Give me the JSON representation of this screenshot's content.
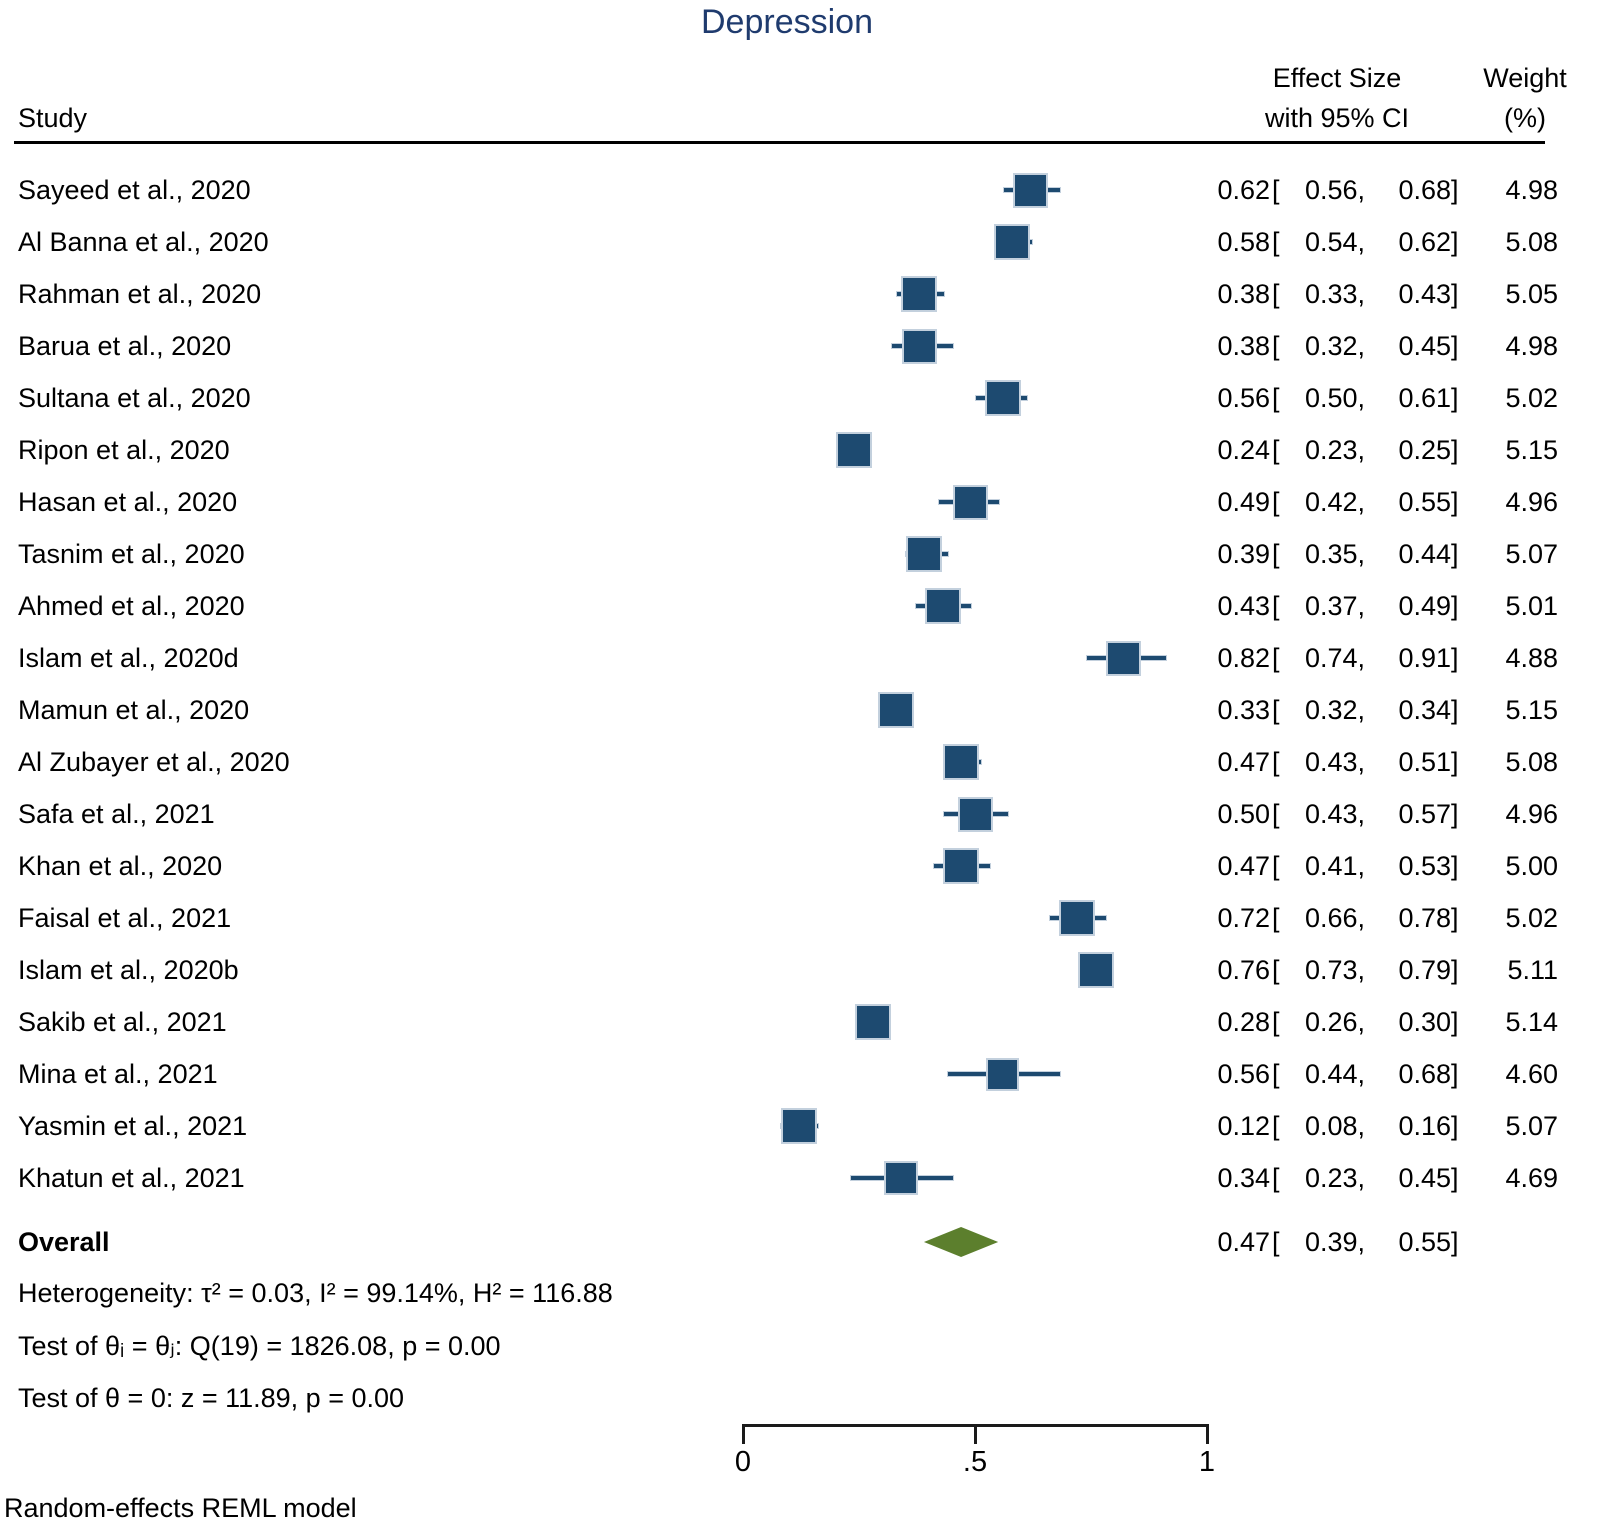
{
  "title": "Depression",
  "header": {
    "study": "Study",
    "effect_line1": "Effect Size",
    "effect_line2": "with 95% CI",
    "weight_line1": "Weight",
    "weight_line2": "(%)"
  },
  "stats": {
    "overall_label": "Overall",
    "heterogeneity": "Heterogeneity: τ² = 0.03, I² = 99.14%, H² = 116.88",
    "test_theta_ij": "Test of θᵢ = θⱼ: Q(19) = 1826.08, p = 0.00",
    "test_theta_zero": "Test of θ = 0: z = 11.89, p = 0.00"
  },
  "footer": "Random-effects REML model",
  "colors": {
    "marker_fill": "#1d4a70",
    "marker_border": "#c3d0dd",
    "diamond_fill": "#5c7f2d",
    "title_color": "#1f3b6e",
    "axis_color": "#1a1a1a"
  },
  "chart_data": {
    "type": "forest",
    "title": "Depression",
    "x_axis": {
      "range": [
        0,
        1
      ],
      "ticks": [
        {
          "label": "0",
          "value": 0
        },
        {
          "label": ".5",
          "value": 0.5
        },
        {
          "label": "1",
          "value": 1
        }
      ]
    },
    "columns": [
      "Study",
      "Effect Size with 95% CI",
      "Weight (%)"
    ],
    "studies": [
      {
        "label": "Sayeed et al., 2020",
        "est": 0.62,
        "lo": 0.56,
        "hi": 0.68,
        "weight": 4.98
      },
      {
        "label": "Al Banna et al., 2020",
        "est": 0.58,
        "lo": 0.54,
        "hi": 0.62,
        "weight": 5.08
      },
      {
        "label": "Rahman et al., 2020",
        "est": 0.38,
        "lo": 0.33,
        "hi": 0.43,
        "weight": 5.05
      },
      {
        "label": "Barua et al., 2020",
        "est": 0.38,
        "lo": 0.32,
        "hi": 0.45,
        "weight": 4.98
      },
      {
        "label": "Sultana et al., 2020",
        "est": 0.56,
        "lo": 0.5,
        "hi": 0.61,
        "weight": 5.02
      },
      {
        "label": "Ripon et al., 2020",
        "est": 0.24,
        "lo": 0.23,
        "hi": 0.25,
        "weight": 5.15
      },
      {
        "label": "Hasan et al., 2020",
        "est": 0.49,
        "lo": 0.42,
        "hi": 0.55,
        "weight": 4.96
      },
      {
        "label": "Tasnim et al., 2020",
        "est": 0.39,
        "lo": 0.35,
        "hi": 0.44,
        "weight": 5.07
      },
      {
        "label": "Ahmed et al., 2020",
        "est": 0.43,
        "lo": 0.37,
        "hi": 0.49,
        "weight": 5.01
      },
      {
        "label": "Islam et al., 2020d",
        "est": 0.82,
        "lo": 0.74,
        "hi": 0.91,
        "weight": 4.88
      },
      {
        "label": "Mamun et al., 2020",
        "est": 0.33,
        "lo": 0.32,
        "hi": 0.34,
        "weight": 5.15
      },
      {
        "label": "Al Zubayer et al., 2020",
        "est": 0.47,
        "lo": 0.43,
        "hi": 0.51,
        "weight": 5.08
      },
      {
        "label": "Safa et al., 2021",
        "est": 0.5,
        "lo": 0.43,
        "hi": 0.57,
        "weight": 4.96
      },
      {
        "label": "Khan et al., 2020",
        "est": 0.47,
        "lo": 0.41,
        "hi": 0.53,
        "weight": 5.0
      },
      {
        "label": "Faisal et al., 2021",
        "est": 0.72,
        "lo": 0.66,
        "hi": 0.78,
        "weight": 5.02
      },
      {
        "label": "Islam et al., 2020b",
        "est": 0.76,
        "lo": 0.73,
        "hi": 0.79,
        "weight": 5.11
      },
      {
        "label": "Sakib et al., 2021",
        "est": 0.28,
        "lo": 0.26,
        "hi": 0.3,
        "weight": 5.14
      },
      {
        "label": "Mina et al., 2021",
        "est": 0.56,
        "lo": 0.44,
        "hi": 0.68,
        "weight": 4.6
      },
      {
        "label": "Yasmin et al., 2021",
        "est": 0.12,
        "lo": 0.08,
        "hi": 0.16,
        "weight": 5.07
      },
      {
        "label": "Khatun et al., 2021",
        "est": 0.34,
        "lo": 0.23,
        "hi": 0.45,
        "weight": 4.69
      }
    ],
    "overall": {
      "est": 0.47,
      "lo": 0.39,
      "hi": 0.55
    },
    "heterogeneity": {
      "tau2": 0.03,
      "I2_pct": 99.14,
      "H2": 116.88
    },
    "test_Q": {
      "df": 19,
      "Q": 1826.08,
      "p": 0.0
    },
    "test_z": {
      "z": 11.89,
      "p": 0.0
    },
    "model": "Random-effects REML model"
  }
}
